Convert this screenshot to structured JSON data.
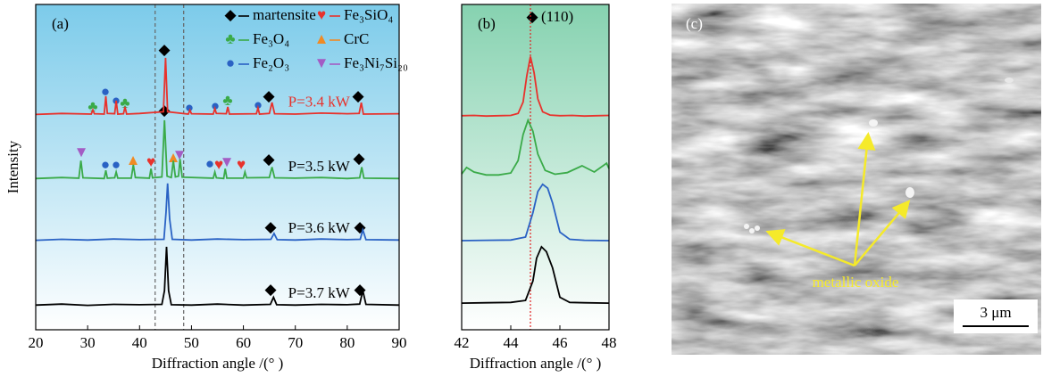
{
  "chart_data": [
    {
      "type": "line",
      "panel_label": "(a)",
      "x_label": "Diffraction angle /(° )",
      "y_label": "Intensity",
      "xlim": [
        20,
        90
      ],
      "xticks": [
        20,
        30,
        40,
        50,
        60,
        70,
        80,
        90
      ],
      "ylim": [
        0,
        100
      ],
      "reference_lines": [
        43,
        48.5
      ],
      "phases": [
        {
          "name": "martensite",
          "color": "#000000",
          "marker": "diamond"
        },
        {
          "name": "Fe₃SiO₄",
          "color": "#e8322c",
          "marker": "heart"
        },
        {
          "name": "Fe₃O₄",
          "color": "#3aaa48",
          "marker": "club"
        },
        {
          "name": "CrC",
          "color": "#f08a24",
          "marker": "spade"
        },
        {
          "name": "Fe₂O₃",
          "color": "#2a62c4",
          "marker": "dot"
        },
        {
          "name": "Fe₃Ni₇Si₂₀",
          "color": "#a35cc4",
          "marker": "triangle"
        }
      ],
      "series": [
        {
          "name": "P=3.4 kW",
          "color": "#e8322c",
          "label_color": "#e8322c",
          "x": [
            20,
            25,
            30.7,
            31,
            31.3,
            33.2,
            33.5,
            33.8,
            35.2,
            35.5,
            35.8,
            36.9,
            37.2,
            37.5,
            40,
            44.6,
            45,
            45.4,
            49.4,
            49.7,
            50,
            54.2,
            54.5,
            54.8,
            56.7,
            57,
            57.3,
            62.5,
            62.8,
            63.1,
            65,
            65.5,
            66,
            70,
            75,
            80,
            82.3,
            82.7,
            83.1,
            90
          ],
          "values": [
            66.2,
            66.5,
            66.3,
            67.6,
            66.4,
            66.3,
            71.8,
            66.5,
            66.4,
            70.4,
            66.3,
            66.4,
            68.5,
            66.3,
            66.5,
            67,
            83.6,
            67,
            66.3,
            67.5,
            66.4,
            66.3,
            68,
            66.5,
            66.4,
            68.5,
            66.3,
            66.4,
            68.2,
            66.3,
            66.5,
            69.9,
            66.4,
            66.3,
            66.6,
            66.4,
            66.5,
            69.8,
            66.3,
            66.4
          ]
        },
        {
          "name": "P=3.5 kW",
          "color": "#3aaa48",
          "label_color": "#000000",
          "x": [
            20,
            25,
            28.3,
            28.7,
            29.1,
            33.2,
            33.5,
            33.8,
            35.2,
            35.5,
            35.8,
            38.4,
            38.8,
            39.2,
            41.9,
            42.2,
            42.5,
            44.3,
            44.8,
            45.3,
            46.1,
            46.5,
            46.9,
            47.5,
            47.8,
            48.2,
            54.2,
            54.5,
            54.8,
            56.2,
            56.5,
            56.8,
            60,
            60.3,
            60.6,
            65,
            65.5,
            66,
            70,
            75,
            80,
            82.4,
            82.8,
            83.2,
            90
          ],
          "values": [
            46.5,
            46.8,
            46.6,
            52,
            46.7,
            46.5,
            49,
            46.6,
            46.7,
            48.5,
            46.6,
            46.6,
            50.7,
            46.8,
            46.6,
            49.5,
            46.7,
            47,
            64.4,
            47.2,
            46.8,
            52,
            47,
            47.2,
            52.5,
            46.9,
            46.6,
            48.5,
            46.7,
            46.5,
            49.5,
            46.6,
            46.6,
            48.5,
            46.7,
            46.8,
            50,
            46.7,
            46.6,
            46.8,
            46.5,
            46.7,
            50,
            46.6,
            46.5
          ]
        },
        {
          "name": "P=3.6 kW",
          "color": "#2a62c4",
          "label_color": "#000000",
          "x": [
            20,
            25,
            30,
            35,
            40,
            44.7,
            45.1,
            45.4,
            45.8,
            46.3,
            50,
            55,
            60,
            65.3,
            65.9,
            66.5,
            70,
            75,
            80,
            82.5,
            83,
            83.6,
            90
          ],
          "values": [
            27.5,
            27.8,
            27.6,
            27.9,
            27.7,
            27.8,
            36,
            45,
            34,
            27.8,
            27.6,
            27.9,
            27.7,
            27.8,
            29.6,
            27.7,
            27.6,
            27.9,
            27.7,
            27.8,
            30.7,
            27.7,
            27.6
          ]
        },
        {
          "name": "P=3.7 kW",
          "color": "#000000",
          "label_color": "#000000",
          "x": [
            20,
            25,
            30,
            35,
            40,
            44.3,
            44.8,
            45.2,
            45.6,
            46.1,
            50,
            55,
            60,
            65.2,
            65.8,
            66.4,
            70,
            75,
            80,
            82.4,
            83,
            83.6,
            90
          ],
          "values": [
            7.6,
            7.9,
            7.5,
            7.8,
            7.7,
            7.8,
            12,
            25.5,
            12,
            7.7,
            7.6,
            7.9,
            7.6,
            7.8,
            10,
            7.7,
            7.6,
            7.8,
            7.7,
            7.9,
            12,
            7.8,
            7.6
          ]
        }
      ]
    },
    {
      "type": "line",
      "panel_label": "(b)",
      "x_label": "Diffraction angle /(° )",
      "peak_label": "(110)",
      "xlim": [
        42,
        48
      ],
      "xticks": [
        42,
        44,
        46,
        48
      ],
      "ylim": [
        0,
        100
      ],
      "reference_lines": [
        44.8
      ],
      "series": [
        {
          "color": "#e8322c",
          "x": [
            42,
            42.5,
            43,
            43.5,
            44,
            44.3,
            44.5,
            44.65,
            44.8,
            44.95,
            45.1,
            45.3,
            45.6,
            46,
            46.5,
            47,
            47.5,
            48
          ],
          "values": [
            65.8,
            65.9,
            65.7,
            65.8,
            65.9,
            66.5,
            70,
            78,
            84,
            79,
            71,
            67,
            66,
            65.8,
            65.9,
            65.7,
            65.8,
            65.9
          ]
        },
        {
          "color": "#3aaa48",
          "x": [
            42,
            42.2,
            42.5,
            43,
            43.5,
            44,
            44.3,
            44.5,
            44.7,
            44.9,
            45.1,
            45.4,
            45.8,
            46.3,
            46.9,
            47.4,
            47.9,
            48
          ],
          "values": [
            47.9,
            49.9,
            48.5,
            47.6,
            47.6,
            48.2,
            52,
            60,
            64.4,
            61,
            54,
            49,
            47.8,
            48.3,
            50.4,
            48.5,
            51.2,
            49.5
          ]
        },
        {
          "color": "#2a62c4",
          "x": [
            42,
            43,
            44,
            44.6,
            44.9,
            45.1,
            45.3,
            45.5,
            45.7,
            46,
            46.4,
            47,
            48
          ],
          "values": [
            27.4,
            27.5,
            27.6,
            28.5,
            36,
            42.5,
            44.7,
            43.5,
            39,
            30,
            27.8,
            27.5,
            27.4
          ]
        },
        {
          "color": "#000000",
          "x": [
            42,
            43,
            44,
            44.6,
            44.9,
            45.05,
            45.25,
            45.45,
            45.7,
            46,
            46.4,
            47,
            48
          ],
          "values": [
            8.2,
            8.3,
            8.4,
            9,
            15,
            22,
            25.5,
            24,
            19,
            10,
            8.4,
            8.3,
            8.2
          ]
        }
      ]
    }
  ],
  "image": {
    "panel_label": "(c)",
    "annotation": "metallic oxide",
    "scale_bar": "3 μm"
  }
}
